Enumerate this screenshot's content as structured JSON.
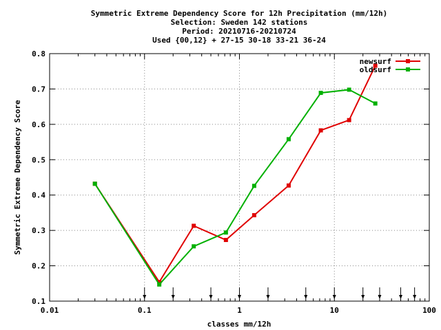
{
  "chart_data": {
    "type": "line",
    "title_lines": [
      "Symmetric Extreme Dependency Score  for 12h Precipitation (mm/12h)",
      "Selection: Sweden    142 stations",
      "Period: 20210716-20210724",
      "Used {00,12} + 27-15 30-18 33-21 36-24"
    ],
    "xlabel": "classes mm/12h",
    "ylabel": "Symmetric Extreme Dependency Score",
    "xscale": "log",
    "xlim": [
      0.01,
      100
    ],
    "ylim": [
      0.1,
      0.8
    ],
    "x_ticks": [
      {
        "value": 0.01,
        "label": "0.01"
      },
      {
        "value": 0.1,
        "label": "0.1"
      },
      {
        "value": 1,
        "label": "1"
      },
      {
        "value": 10,
        "label": "10"
      },
      {
        "value": 100,
        "label": "100"
      }
    ],
    "y_ticks": [
      {
        "value": 0.1,
        "label": "0.1"
      },
      {
        "value": 0.2,
        "label": "0.2"
      },
      {
        "value": 0.3,
        "label": "0.3"
      },
      {
        "value": 0.4,
        "label": "0.4"
      },
      {
        "value": 0.5,
        "label": "0.5"
      },
      {
        "value": 0.6,
        "label": "0.6"
      },
      {
        "value": 0.7,
        "label": "0.7"
      },
      {
        "value": 0.8,
        "label": "0.8"
      }
    ],
    "grid": true,
    "legend_position": "top-right",
    "class_markers": [
      0.1,
      0.2,
      0.5,
      1,
      2,
      5,
      10,
      20,
      30,
      50,
      70
    ],
    "series": [
      {
        "name": "newsurf",
        "color": "#e00000",
        "points": [
          [
            0.03,
            0.432
          ],
          [
            0.143,
            0.154
          ],
          [
            0.33,
            0.313
          ],
          [
            0.72,
            0.273
          ],
          [
            1.43,
            0.343
          ],
          [
            3.3,
            0.427
          ],
          [
            7.2,
            0.583
          ],
          [
            14.3,
            0.612
          ],
          [
            27,
            0.766
          ]
        ]
      },
      {
        "name": "oldsurf",
        "color": "#00b000",
        "points": [
          [
            0.03,
            0.432
          ],
          [
            0.143,
            0.147
          ],
          [
            0.33,
            0.255
          ],
          [
            0.72,
            0.294
          ],
          [
            1.43,
            0.426
          ],
          [
            3.3,
            0.558
          ],
          [
            7.2,
            0.689
          ],
          [
            14.3,
            0.698
          ],
          [
            27,
            0.659
          ]
        ]
      }
    ]
  }
}
